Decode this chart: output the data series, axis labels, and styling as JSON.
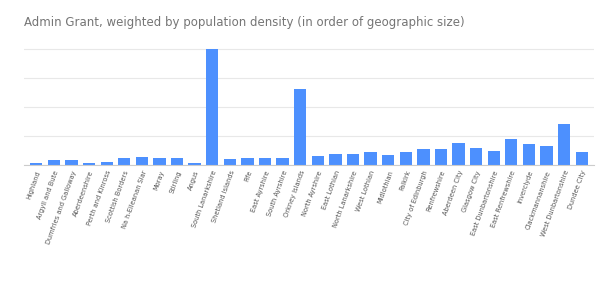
{
  "title": "Admin Grant, weighted by population density (in order of geographic size)",
  "categories": [
    "Highland",
    "Argyll and Bute",
    "Dumfries and Galloway",
    "Aberdeenshire",
    "Perth and Kinross",
    "Scottish Borders",
    "Na h-Eileanan Siar",
    "Moray",
    "Stirling",
    "Angus",
    "South Lanarkshire",
    "Shetland Islands",
    "Fife",
    "East Ayrshire",
    "South Ayrshire",
    "Orkney Islands",
    "North Ayrshire",
    "East Lothian",
    "North Lanarkshire",
    "West Lothian",
    "Midlothian",
    "Falkirk",
    "City of Edinburgh",
    "Renfrewshire",
    "Aberdeen City",
    "Glasgow City",
    "East Dunbartonshire",
    "East Renfrewshire",
    "Inverclyde",
    "Clackmannanshire",
    "West Dunbartonshire",
    "Dundee City"
  ],
  "values": [
    1.5,
    3.0,
    3.5,
    1.0,
    2.0,
    4.5,
    5.5,
    4.5,
    4.5,
    1.5,
    80.0,
    4.0,
    4.5,
    4.5,
    4.5,
    52.0,
    6.0,
    7.5,
    7.5,
    8.5,
    7.0,
    9.0,
    10.5,
    11.0,
    15.0,
    11.5,
    9.5,
    18.0,
    14.0,
    13.0,
    28.0,
    9.0
  ],
  "bar_color": "#4d90fe",
  "background_color": "#ffffff",
  "grid_color": "#e8e8e8",
  "title_color": "#757575",
  "title_fontsize": 8.5,
  "ylim": [
    0,
    90
  ]
}
